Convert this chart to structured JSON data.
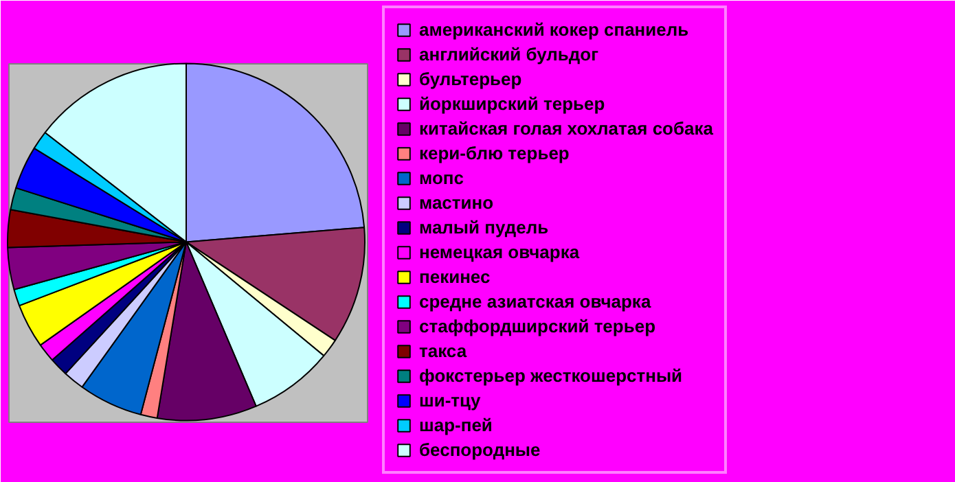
{
  "chart_data": {
    "type": "pie",
    "legend": "right",
    "categories": [
      "американский кокер спаниель",
      "английский бульдог",
      "бультерьер",
      "йоркширский терьер",
      "китайская голая хохлатая собака",
      "кери-блю терьер",
      "мопс",
      "мастино",
      "малый пудель",
      "немецкая овчарка",
      "пекинес",
      "средне азиатская овчарка",
      "стаффордширский терьер",
      "такса",
      "фокстерьер жесткошерстный",
      "ши-тцу",
      "шар-пей",
      "беспородные"
    ],
    "values": [
      23.7,
      10.6,
      1.7,
      7.6,
      9.0,
      1.5,
      5.8,
      1.9,
      1.7,
      1.7,
      4.0,
      1.5,
      3.8,
      3.4,
      2.0,
      3.9,
      1.7,
      14.5
    ],
    "colors": [
      "#9999ff",
      "#993366",
      "#ffffcc",
      "#ccffff",
      "#660066",
      "#ff8080",
      "#0066cc",
      "#ccccff",
      "#000080",
      "#ff00ff",
      "#ffff00",
      "#00ffff",
      "#800080",
      "#800000",
      "#008080",
      "#0000ff",
      "#00ccff",
      "#ccffff"
    ]
  }
}
